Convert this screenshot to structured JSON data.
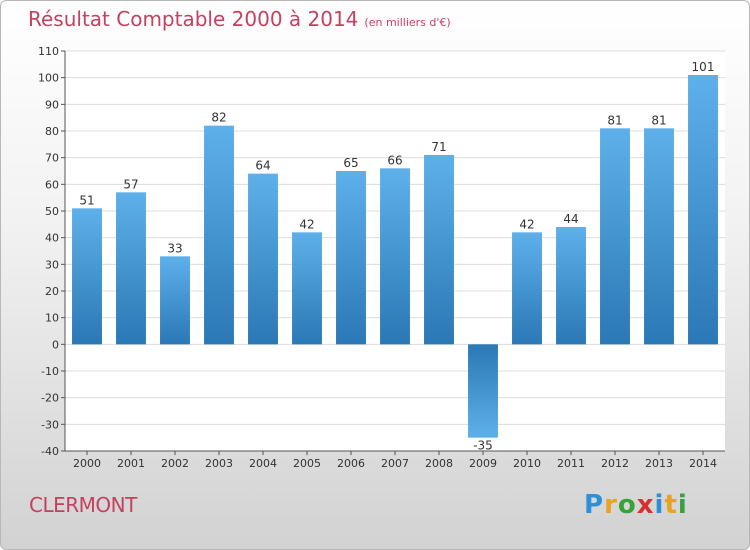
{
  "header": {
    "title": "Résultat Comptable 2000 à 2014",
    "subtitle": "(en milliers d'€)"
  },
  "footer": {
    "city": "CLERMONT",
    "logo_letters": [
      "P",
      "r",
      "o",
      "x",
      "i",
      "t",
      "i"
    ],
    "logo_colors": [
      "#2d8fd6",
      "#e8a323",
      "#3aa13a",
      "#d6302d",
      "#2d8fd6",
      "#e8a323",
      "#3aa13a"
    ]
  },
  "chart_data": {
    "type": "bar",
    "title": "Résultat Comptable 2000 à 2014",
    "categories": [
      "2000",
      "2001",
      "2002",
      "2003",
      "2004",
      "2005",
      "2006",
      "2007",
      "2008",
      "2009",
      "2010",
      "2011",
      "2012",
      "2013",
      "2014"
    ],
    "values": [
      51,
      57,
      33,
      82,
      64,
      42,
      65,
      66,
      71,
      -35,
      42,
      44,
      81,
      81,
      101
    ],
    "yticks": [
      110,
      100,
      90,
      80,
      70,
      60,
      50,
      40,
      30,
      20,
      10,
      0,
      -10,
      -20,
      -30,
      -40
    ],
    "ylim": [
      -40,
      110
    ],
    "grid": true,
    "bar_color_top": "#5eb0ea",
    "bar_color_bottom": "#2a78b5"
  }
}
